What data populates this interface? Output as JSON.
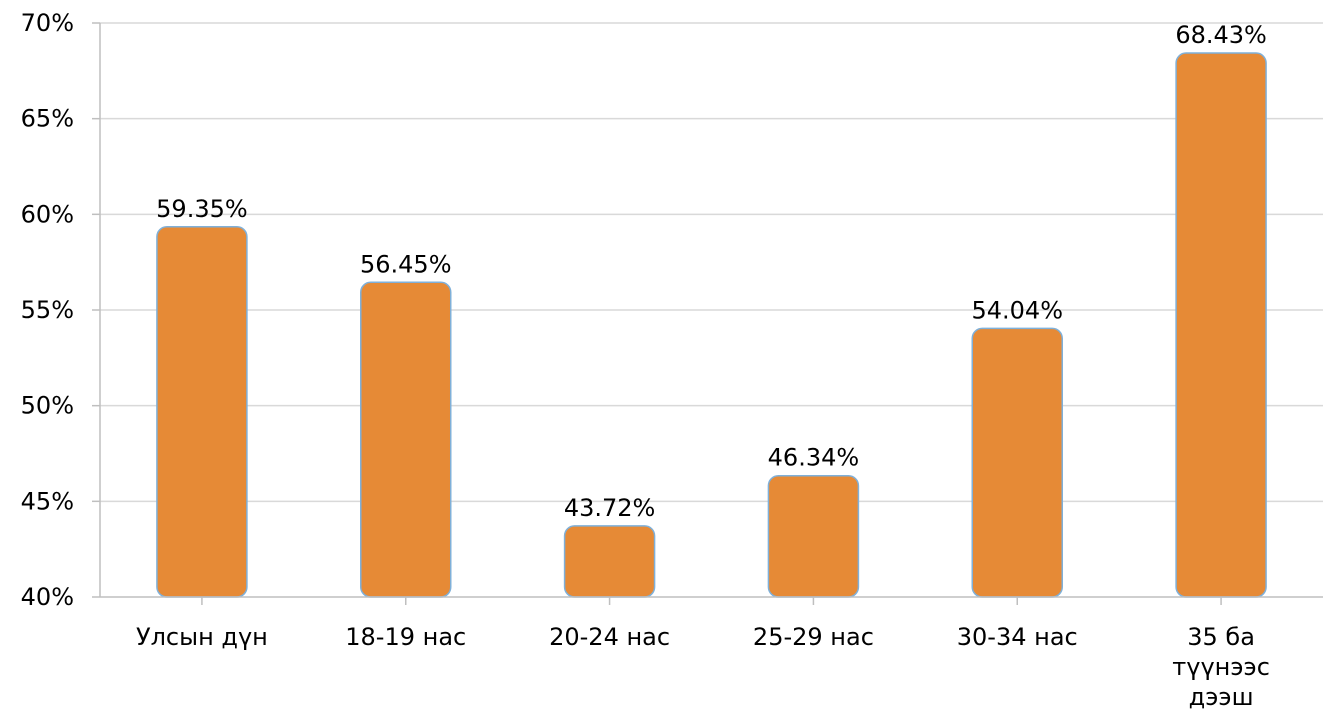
{
  "chart_data": {
    "type": "bar",
    "categories": [
      "Улсын дүн",
      "18-19 нас",
      "20-24 нас",
      "25-29 нас",
      "30-34 нас",
      "35 ба түүнээс дээш"
    ],
    "values": [
      59.35,
      56.45,
      43.72,
      46.34,
      54.04,
      68.43
    ],
    "data_labels": [
      "59.35%",
      "56.45%",
      "43.72%",
      "46.34%",
      "54.04%",
      "68.43%"
    ],
    "title": "",
    "xlabel": "",
    "ylabel": "",
    "ylim": [
      40,
      70
    ],
    "yticks": [
      40,
      45,
      50,
      55,
      60,
      65,
      70
    ],
    "ytick_labels": [
      "40%",
      "45%",
      "50%",
      "55%",
      "60%",
      "65%",
      "70%"
    ],
    "grid": true,
    "legend": "none",
    "colors": {
      "bar_fill": "#e68a36",
      "bar_outline": "#7fb0d9",
      "grid": "#d9d9d9",
      "axis": "#bfbfbf"
    }
  }
}
